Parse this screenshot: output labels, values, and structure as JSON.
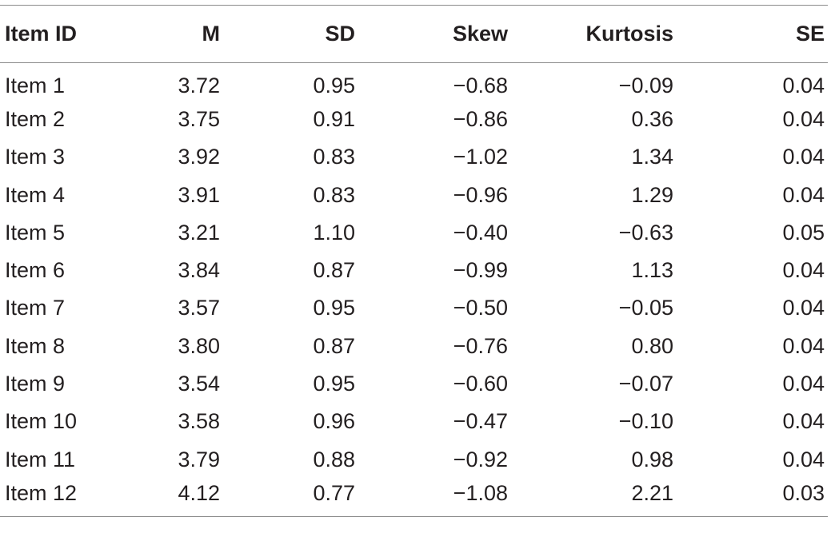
{
  "table": {
    "headers": [
      "Item ID",
      "M",
      "SD",
      "Skew",
      "Kurtosis",
      "SE"
    ],
    "rows": [
      [
        "Item 1",
        "3.72",
        "0.95",
        "−0.68",
        "−0.09",
        "0.04"
      ],
      [
        "Item 2",
        "3.75",
        "0.91",
        "−0.86",
        "0.36",
        "0.04"
      ],
      [
        "Item 3",
        "3.92",
        "0.83",
        "−1.02",
        "1.34",
        "0.04"
      ],
      [
        "Item 4",
        "3.91",
        "0.83",
        "−0.96",
        "1.29",
        "0.04"
      ],
      [
        "Item 5",
        "3.21",
        "1.10",
        "−0.40",
        "−0.63",
        "0.05"
      ],
      [
        "Item 6",
        "3.84",
        "0.87",
        "−0.99",
        "1.13",
        "0.04"
      ],
      [
        "Item 7",
        "3.57",
        "0.95",
        "−0.50",
        "−0.05",
        "0.04"
      ],
      [
        "Item 8",
        "3.80",
        "0.87",
        "−0.76",
        "0.80",
        "0.04"
      ],
      [
        "Item 9",
        "3.54",
        "0.95",
        "−0.60",
        "−0.07",
        "0.04"
      ],
      [
        "Item 10",
        "3.58",
        "0.96",
        "−0.47",
        "−0.10",
        "0.04"
      ],
      [
        "Item 11",
        "3.79",
        "0.88",
        "−0.92",
        "0.98",
        "0.04"
      ],
      [
        "Item 12",
        "4.12",
        "0.77",
        "−1.08",
        "2.21",
        "0.03"
      ]
    ]
  }
}
